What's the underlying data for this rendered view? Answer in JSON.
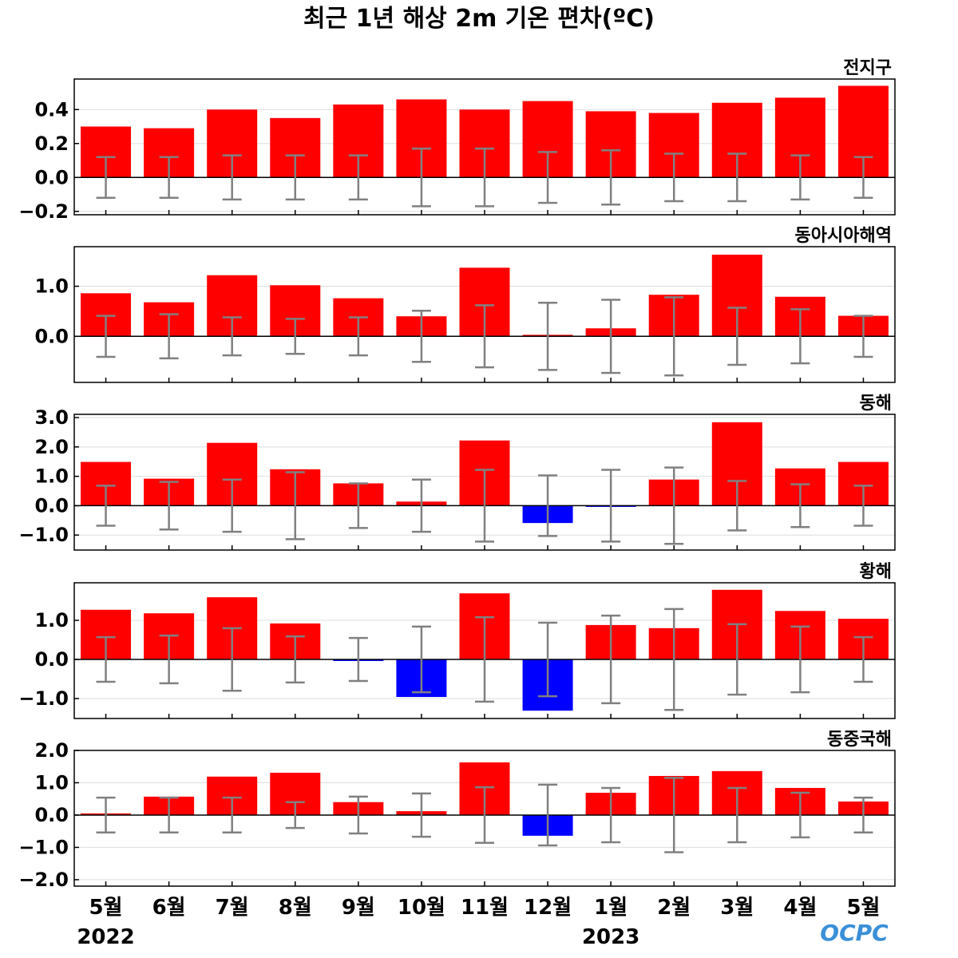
{
  "chart_data": {
    "type": "bar",
    "title": "최근 1년 해상 2m 기온 편차(ºC)",
    "categories": [
      "5월",
      "6월",
      "7월",
      "8월",
      "9월",
      "10월",
      "11월",
      "12월",
      "1월",
      "2월",
      "3월",
      "4월",
      "5월"
    ],
    "year_labels": [
      {
        "label": "2022",
        "category_index": 0
      },
      {
        "label": "2023",
        "category_index": 8
      }
    ],
    "logo": "OCPC",
    "colors": {
      "positive": "#ff0000",
      "negative": "#0000ff",
      "error_bar": "#808080",
      "grid": "#dddddd"
    },
    "grid": true,
    "panels": [
      {
        "name": "전지구",
        "ylim": [
          -0.22,
          0.58
        ],
        "yticks": [
          -0.2,
          0.0,
          0.2,
          0.4
        ],
        "tick_decimals": 1,
        "values": [
          0.3,
          0.29,
          0.4,
          0.35,
          0.43,
          0.46,
          0.4,
          0.45,
          0.39,
          0.38,
          0.44,
          0.47,
          0.54
        ],
        "error": [
          0.12,
          0.12,
          0.13,
          0.13,
          0.13,
          0.17,
          0.17,
          0.15,
          0.16,
          0.14,
          0.14,
          0.13,
          0.12
        ]
      },
      {
        "name": "동아시아해역",
        "ylim": [
          -0.92,
          1.79
        ],
        "yticks": [
          0.0,
          1.0
        ],
        "tick_decimals": 1,
        "values": [
          0.86,
          0.68,
          1.22,
          1.02,
          0.76,
          0.4,
          1.37,
          0.03,
          0.16,
          0.83,
          1.63,
          0.79,
          0.41
        ],
        "error": [
          0.41,
          0.44,
          0.38,
          0.35,
          0.38,
          0.51,
          0.62,
          0.67,
          0.73,
          0.78,
          0.57,
          0.54,
          0.41
        ]
      },
      {
        "name": "동해",
        "ylim": [
          -1.51,
          3.11
        ],
        "yticks": [
          -1.0,
          0.0,
          1.0,
          2.0,
          3.0
        ],
        "tick_decimals": 1,
        "values": [
          1.49,
          0.92,
          2.14,
          1.24,
          0.76,
          0.14,
          2.22,
          -0.59,
          -0.03,
          0.89,
          2.84,
          1.27,
          1.49
        ],
        "error": [
          0.68,
          0.81,
          0.89,
          1.14,
          0.76,
          0.89,
          1.22,
          1.03,
          1.22,
          1.3,
          0.84,
          0.73,
          0.68
        ]
      },
      {
        "name": "황해",
        "ylim": [
          -1.51,
          1.96
        ],
        "yticks": [
          -1.0,
          0.0,
          1.0
        ],
        "tick_decimals": 1,
        "values": [
          1.27,
          1.18,
          1.59,
          0.92,
          -0.04,
          -0.96,
          1.69,
          -1.31,
          0.88,
          0.8,
          1.78,
          1.24,
          1.04
        ],
        "error": [
          0.57,
          0.61,
          0.8,
          0.59,
          0.55,
          0.84,
          1.08,
          0.94,
          1.12,
          1.29,
          0.9,
          0.84,
          0.57
        ]
      },
      {
        "name": "동중국해",
        "ylim": [
          -2.2,
          2.0
        ],
        "yticks": [
          -2.0,
          -1.0,
          0.0,
          1.0,
          2.0
        ],
        "tick_decimals": 1,
        "values": [
          0.05,
          0.57,
          1.19,
          1.31,
          0.4,
          0.12,
          1.63,
          -0.64,
          0.69,
          1.21,
          1.36,
          0.84,
          0.42
        ],
        "error": [
          0.54,
          0.54,
          0.54,
          0.4,
          0.57,
          0.67,
          0.86,
          0.94,
          0.84,
          1.15,
          0.84,
          0.69,
          0.54
        ]
      }
    ]
  }
}
